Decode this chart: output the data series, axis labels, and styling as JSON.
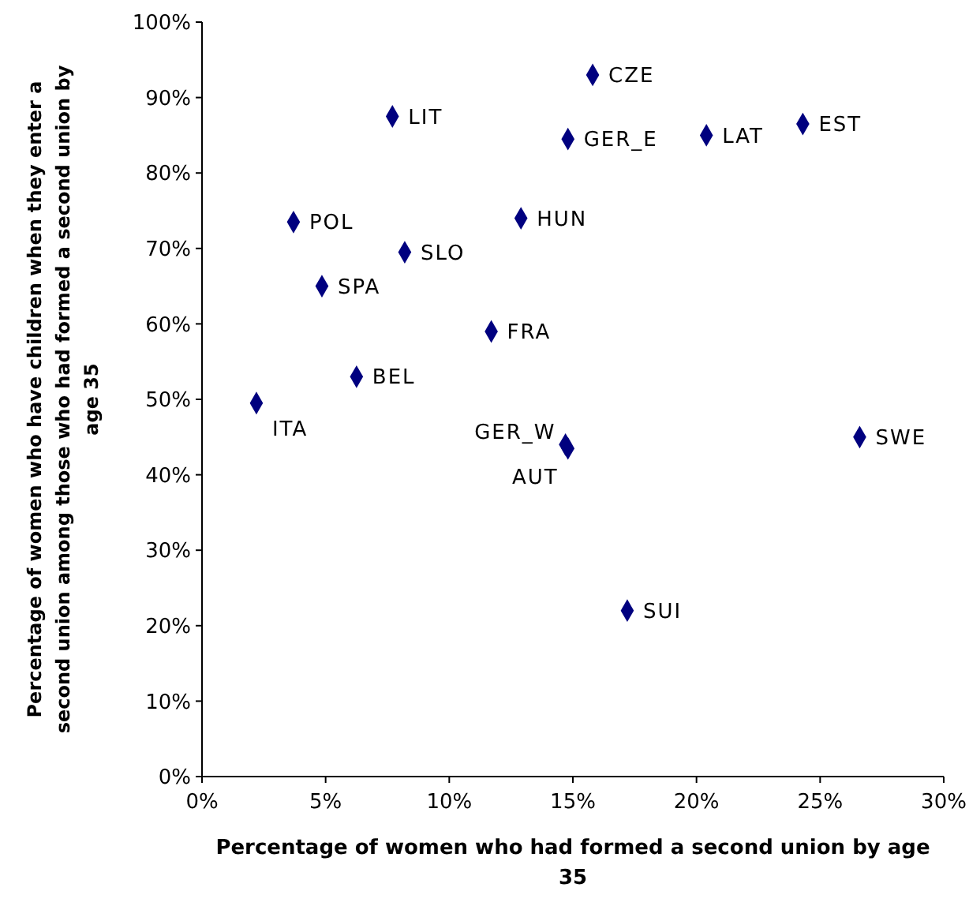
{
  "chart_data": {
    "type": "scatter",
    "xlabel": "Percentage of women who had formed a second union by age 35",
    "ylabel": "Percentage of women who have children when they enter a second union among those who had formed a second union by age 35",
    "series": [
      {
        "color": "#00007f",
        "x": [
          15.8,
          7.7,
          14.8,
          20.4,
          24.3,
          3.7,
          12.9,
          8.2,
          4.85,
          11.7,
          6.25,
          2.2,
          14.7,
          14.8,
          26.6,
          17.2
        ],
        "values": [
          93,
          87.5,
          84.5,
          85,
          86.5,
          73.5,
          74,
          69.5,
          65,
          59,
          53,
          49.5,
          44,
          43.5,
          45,
          22
        ]
      }
    ],
    "annotations": [
      {
        "text": "CZE",
        "x": 15.8,
        "y": 93
      },
      {
        "text": "LIT",
        "x": 7.7,
        "y": 87.5
      },
      {
        "text": "GER_E",
        "x": 14.8,
        "y": 84.5
      },
      {
        "text": "LAT",
        "x": 20.4,
        "y": 85
      },
      {
        "text": "EST",
        "x": 24.3,
        "y": 86.5
      },
      {
        "text": "POL",
        "x": 3.7,
        "y": 73.5
      },
      {
        "text": "HUN",
        "x": 12.9,
        "y": 74
      },
      {
        "text": "SLO",
        "x": 8.2,
        "y": 69.5
      },
      {
        "text": "SPA",
        "x": 4.85,
        "y": 65
      },
      {
        "text": "FRA",
        "x": 11.7,
        "y": 59
      },
      {
        "text": "BEL",
        "x": 6.25,
        "y": 53
      },
      {
        "text": "ITA",
        "x": 2.2,
        "y": 49.5
      },
      {
        "text": "GER_W",
        "x": 14.7,
        "y": 44
      },
      {
        "text": "AUT",
        "x": 14.8,
        "y": 43.5
      },
      {
        "text": "SWE",
        "x": 26.6,
        "y": 45
      },
      {
        "text": "SUI",
        "x": 17.2,
        "y": 22
      }
    ],
    "xlim": [
      0,
      30
    ],
    "xticks": [
      {
        "value": 0,
        "label": "0%"
      },
      {
        "value": 5,
        "label": "5%"
      },
      {
        "value": 10,
        "label": "10%"
      },
      {
        "value": 15,
        "label": "15%"
      },
      {
        "value": 20,
        "label": "20%"
      },
      {
        "value": 25,
        "label": "25%"
      },
      {
        "value": 30,
        "label": "30%"
      }
    ],
    "ylim": [
      0,
      100
    ],
    "yticks": [
      {
        "value": 0,
        "label": "0%"
      },
      {
        "value": 10,
        "label": "10%"
      },
      {
        "value": 20,
        "label": "20%"
      },
      {
        "value": 30,
        "label": "30%"
      },
      {
        "value": 40,
        "label": "40%"
      },
      {
        "value": 50,
        "label": "50%"
      },
      {
        "value": 60,
        "label": "60%"
      },
      {
        "value": 70,
        "label": "70%"
      },
      {
        "value": 80,
        "label": "80%"
      },
      {
        "value": 90,
        "label": "90%"
      },
      {
        "value": 100,
        "label": "100%"
      }
    ],
    "marker": "diamond",
    "grid": false
  }
}
